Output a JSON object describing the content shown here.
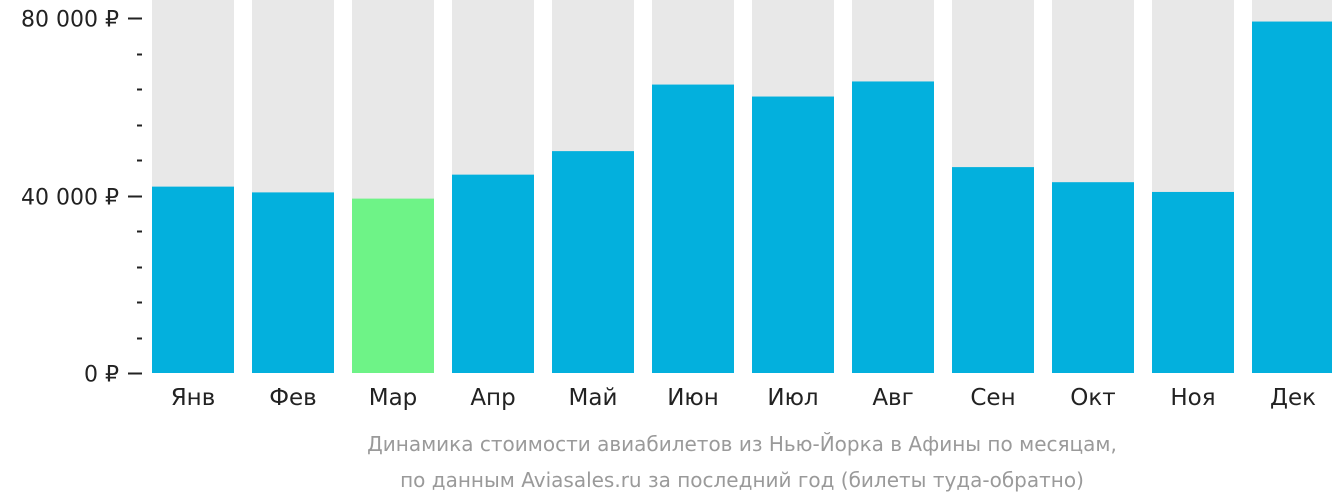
{
  "chart_data": {
    "type": "bar",
    "categories": [
      "Янв",
      "Фев",
      "Мар",
      "Апр",
      "Май",
      "Июн",
      "Июл",
      "Авг",
      "Сен",
      "Окт",
      "Ноя",
      "Дек"
    ],
    "values": [
      42000,
      40700,
      39300,
      44700,
      50000,
      65000,
      62300,
      65700,
      46400,
      43000,
      40800,
      79200
    ],
    "highlight_index": 2,
    "ylim": [
      0,
      82000
    ],
    "y_ticks": [
      {
        "value": 0,
        "label": "0 ₽"
      },
      {
        "value": 40000,
        "label": "40 000 ₽"
      },
      {
        "value": 80000,
        "label": "80 000 ₽"
      }
    ],
    "minor_tick_step": 8000,
    "grid": false,
    "colors": {
      "bar": "#03b0dd",
      "highlight": "#6ef387",
      "background_bar": "#e8e8e8",
      "axis": "#222222"
    }
  },
  "caption": {
    "line1": "Динамика стоимости авиабилетов из Нью-Йорка в Афины по месяцам,",
    "line2": "по данным Aviasales.ru за последний год (билеты туда-обратно)"
  }
}
